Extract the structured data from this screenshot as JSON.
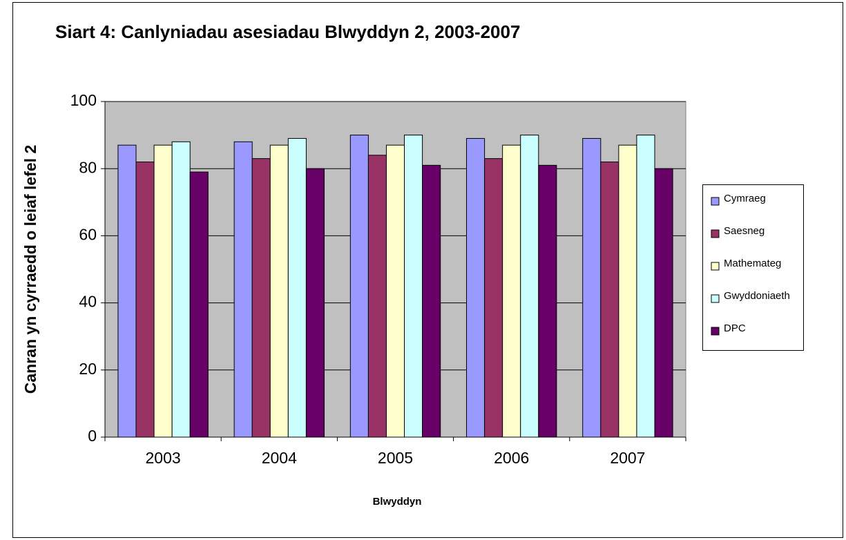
{
  "chart_data": {
    "type": "bar",
    "title": "Siart 4:  Canlyniadau asesiadau Blwyddyn 2, 2003-2007",
    "x_label": "Blwyddyn",
    "y_label": "Canran yn cyrraedd o leiaf lefel 2",
    "categories": [
      "2003",
      "2004",
      "2005",
      "2006",
      "2007"
    ],
    "series": [
      {
        "name": "Cymraeg",
        "color": "#9999ff",
        "values": [
          87,
          88,
          90,
          89,
          89
        ]
      },
      {
        "name": "Saesneg",
        "color": "#993366",
        "values": [
          82,
          83,
          84,
          83,
          82
        ]
      },
      {
        "name": "Mathemateg",
        "color": "#ffffcc",
        "values": [
          87,
          87,
          87,
          87,
          87
        ]
      },
      {
        "name": "Gwyddoniaeth",
        "color": "#ccffff",
        "values": [
          88,
          89,
          90,
          90,
          90
        ]
      },
      {
        "name": "DPC",
        "color": "#660066",
        "values": [
          79,
          80,
          81,
          81,
          80
        ]
      }
    ],
    "ylim": [
      0,
      100
    ],
    "yticks": [
      0,
      20,
      40,
      60,
      80,
      100
    ],
    "grid": true,
    "legend": "right"
  }
}
